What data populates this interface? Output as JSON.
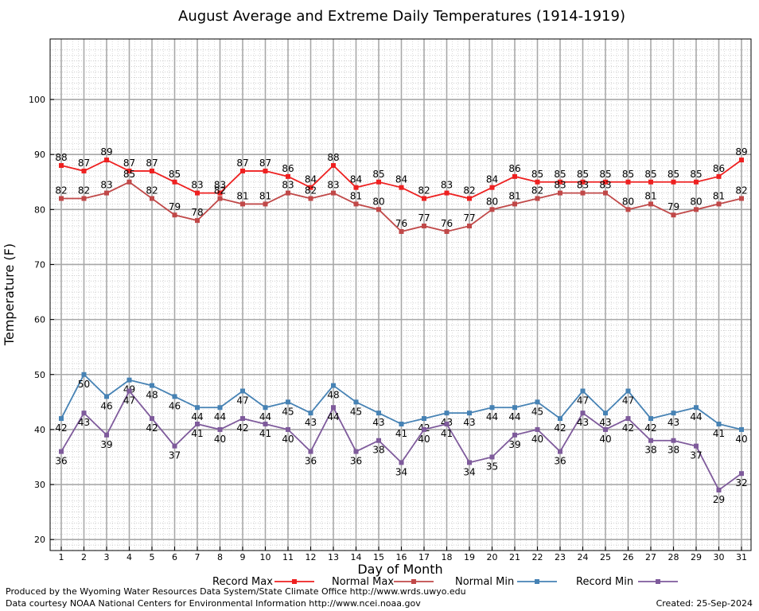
{
  "chart_data": {
    "type": "line",
    "title": "August Average and Extreme Daily Temperatures (1914-1919)",
    "xlabel": "Day of Month",
    "ylabel": "Temperature (F)",
    "ylim": [
      18,
      111
    ],
    "yticks": [
      20,
      30,
      40,
      50,
      60,
      70,
      80,
      90,
      100
    ],
    "x": [
      1,
      2,
      3,
      4,
      5,
      6,
      7,
      8,
      9,
      10,
      11,
      12,
      13,
      14,
      15,
      16,
      17,
      18,
      19,
      20,
      21,
      22,
      23,
      24,
      25,
      26,
      27,
      28,
      29,
      30,
      31
    ],
    "grid": true,
    "legend_position": "bottom",
    "series": [
      {
        "name": "Record Max",
        "color": "#ee2020",
        "label_pos": "above",
        "values": [
          88,
          87,
          89,
          87,
          87,
          85,
          83,
          83,
          87,
          87,
          86,
          84,
          88,
          84,
          85,
          84,
          82,
          83,
          82,
          84,
          86,
          85,
          85,
          85,
          85,
          85,
          85,
          85,
          85,
          86,
          89
        ]
      },
      {
        "name": "Normal Max",
        "color": "#c04848",
        "label_pos": "above",
        "values": [
          82,
          82,
          83,
          85,
          82,
          79,
          78,
          82,
          81,
          81,
          83,
          82,
          83,
          81,
          80,
          76,
          77,
          76,
          77,
          80,
          81,
          82,
          83,
          83,
          83,
          80,
          81,
          79,
          80,
          81,
          82
        ]
      },
      {
        "name": "Normal Min",
        "color": "#4682b4",
        "label_pos": "below",
        "values": [
          42,
          50,
          46,
          49,
          48,
          46,
          44,
          44,
          47,
          44,
          45,
          43,
          48,
          45,
          43,
          41,
          42,
          43,
          43,
          44,
          44,
          45,
          42,
          47,
          43,
          47,
          42,
          43,
          44,
          41,
          40
        ]
      },
      {
        "name": "Record Min",
        "color": "#7e5a9b",
        "label_pos": "below",
        "values": [
          36,
          43,
          39,
          47,
          42,
          37,
          41,
          40,
          42,
          41,
          40,
          36,
          44,
          36,
          38,
          34,
          40,
          41,
          34,
          35,
          39,
          40,
          36,
          43,
          40,
          42,
          38,
          38,
          37,
          29,
          32
        ]
      }
    ]
  },
  "footer": {
    "produced_by": "Produced by the Wyoming Water Resources Data System/State Climate Office http://www.wrds.uwyo.edu",
    "data_courtesy": "Data courtesy NOAA National Centers for Environmental Information http://www.ncei.noaa.gov",
    "created": "Created:  25-Sep-2024"
  }
}
